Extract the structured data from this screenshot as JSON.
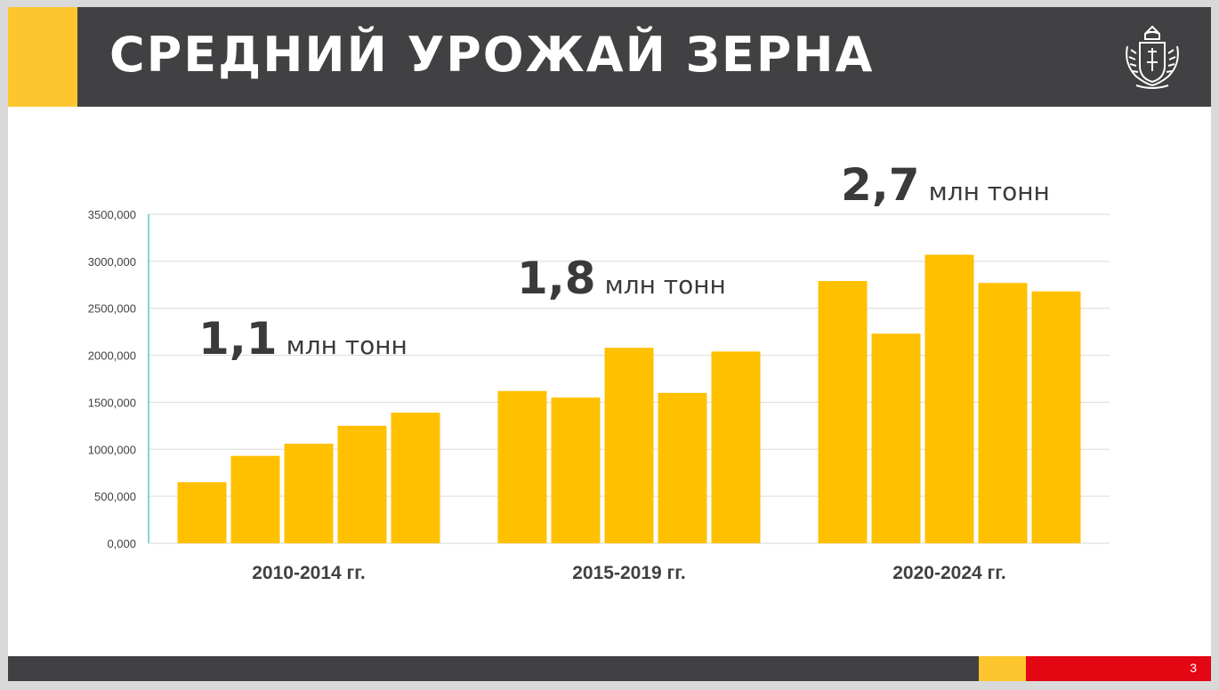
{
  "header": {
    "title": "СРЕДНИЙ УРОЖАЙ ЗЕРНА"
  },
  "footer": {
    "page_number": "3"
  },
  "colors": {
    "bar": "#ffc000",
    "header_bg": "#414042",
    "accent_yellow": "#fec62e",
    "accent_red": "#e30613",
    "axis_line": "#5bc8c8"
  },
  "callouts": [
    {
      "value": "1,1",
      "unit": "млн тонн"
    },
    {
      "value": "1,8",
      "unit": "млн тонн"
    },
    {
      "value": "2,7",
      "unit": "млн тонн"
    }
  ],
  "chart_data": {
    "type": "bar",
    "ylim": [
      0,
      3500000
    ],
    "yticks": [
      0,
      500000,
      1000000,
      1500000,
      2000000,
      2500000,
      3000000,
      3500000
    ],
    "ytick_labels": [
      "0,000",
      "500,000",
      "1000,000",
      "1500,000",
      "2000,000",
      "2500,000",
      "3000,000",
      "3500,000"
    ],
    "grid": true,
    "groups": [
      {
        "label": "2010-2014 гг.",
        "values": [
          650000,
          930000,
          1060000,
          1250000,
          1390000
        ]
      },
      {
        "label": "2015-2019 гг.",
        "values": [
          1620000,
          1550000,
          2080000,
          1600000,
          2040000
        ]
      },
      {
        "label": "2020-2024 гг.",
        "values": [
          2790000,
          2230000,
          3070000,
          2770000,
          2680000
        ]
      }
    ]
  }
}
